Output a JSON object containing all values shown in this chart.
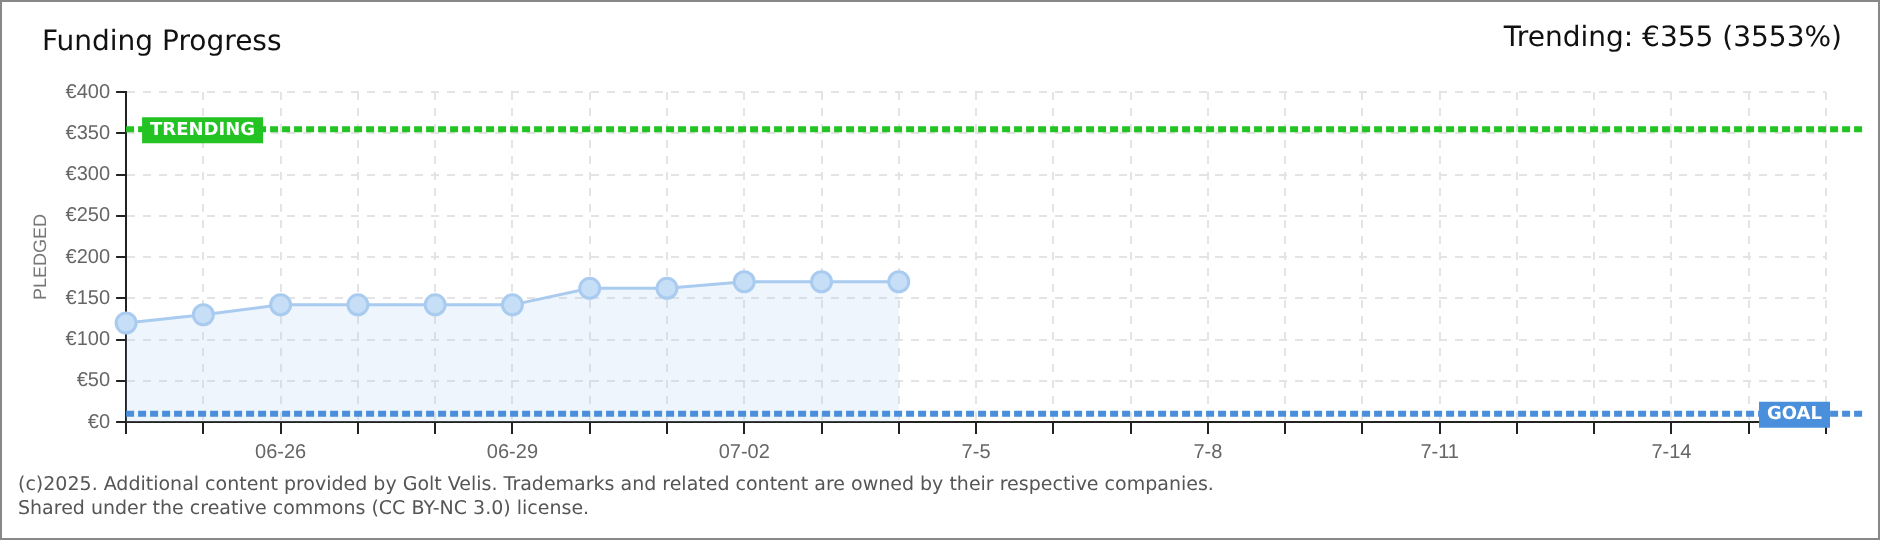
{
  "chart_data": {
    "type": "area",
    "title": "Funding Progress",
    "subtitle": "Trending:  €355 (3553%)",
    "ylabel": "PLEDGED",
    "categories": [
      null,
      null,
      "06-26",
      null,
      null,
      "06-29",
      null,
      null,
      "07-02",
      null,
      null,
      "7-5",
      null,
      null,
      "7-8",
      null,
      null,
      "7-11",
      null,
      null,
      "7-14",
      null,
      null
    ],
    "series": [
      {
        "color": "#a9cbef",
        "values": [
          120,
          130,
          142,
          142,
          142,
          142,
          162,
          162,
          170,
          170,
          170,
          null,
          null,
          null,
          null,
          null,
          null,
          null,
          null,
          null,
          null,
          null,
          null
        ]
      }
    ],
    "ylim": [
      0,
      400
    ],
    "yticks": [
      {
        "value": 0,
        "label": "€0"
      },
      {
        "value": 50,
        "label": "€50"
      },
      {
        "value": 100,
        "label": "€100"
      },
      {
        "value": 150,
        "label": "€150"
      },
      {
        "value": 200,
        "label": "€200"
      },
      {
        "value": 250,
        "label": "€250"
      },
      {
        "value": 300,
        "label": "€300"
      },
      {
        "value": 350,
        "label": "€350"
      },
      {
        "value": 400,
        "label": "€400"
      }
    ],
    "grid": true,
    "marker": "circle",
    "legend": false,
    "ref_lines": [
      {
        "axis": "y",
        "value": 355,
        "label": "TRENDING",
        "color": "#22c322",
        "line_style": "dotted"
      },
      {
        "axis": "y",
        "value": 10,
        "label": "GOAL",
        "color": "#4a8fdc",
        "line_style": "dotted"
      }
    ],
    "annotations": [
      "(c)2025. Additional content provided by Golt Velis. Trademarks and related content are owned by their respective companies.",
      "Shared under the creative commons (CC BY-NC 3.0) license."
    ]
  }
}
